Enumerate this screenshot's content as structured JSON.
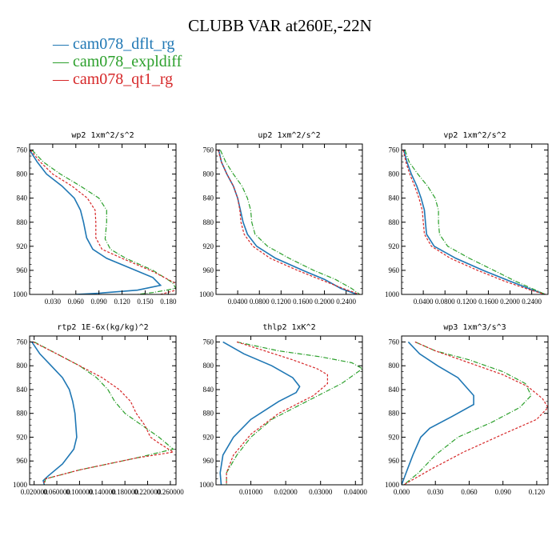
{
  "figure": {
    "title": "CLUBB VAR at260E,-22N",
    "legend": [
      {
        "label": "cam078_dflt_rg",
        "color": "#1f77b4"
      },
      {
        "label": "cam078_expldiff",
        "color": "#2ca02c"
      },
      {
        "label": "cam078_qt1_rg",
        "color": "#d62728"
      }
    ]
  },
  "chart_data": [
    {
      "type": "line",
      "title": "wp2   1xm^2/s^2",
      "xlim": [
        0.0,
        0.19
      ],
      "ylim": [
        1000,
        750
      ],
      "xticks": [
        "0.030",
        "0.060",
        "0.090",
        "0.120",
        "0.150",
        "0.180"
      ],
      "xtick_values": [
        0.03,
        0.06,
        0.09,
        0.12,
        0.15,
        0.18
      ],
      "yticks": [
        "760",
        "800",
        "840",
        "880",
        "920",
        "960",
        "1000"
      ],
      "ytick_values": [
        760,
        800,
        840,
        880,
        920,
        960,
        1000
      ],
      "series": [
        {
          "name": "cam078_dflt_rg",
          "x": [
            0.0,
            0.01,
            0.022,
            0.042,
            0.058,
            0.066,
            0.07,
            0.074,
            0.082,
            0.1,
            0.13,
            0.16,
            0.17,
            0.14,
            0.09,
            0.06
          ],
          "y": [
            760,
            780,
            800,
            820,
            840,
            860,
            880,
            906,
            925,
            940,
            956,
            972,
            985,
            993,
            998,
            1000
          ]
        },
        {
          "name": "cam078_expldiff",
          "x": [
            0.003,
            0.018,
            0.04,
            0.066,
            0.09,
            0.1,
            0.1,
            0.098,
            0.105,
            0.125,
            0.16,
            0.185,
            0.19,
            0.16,
            0.14
          ],
          "y": [
            760,
            780,
            800,
            820,
            840,
            860,
            880,
            908,
            925,
            940,
            960,
            980,
            990,
            997,
            1000
          ]
        },
        {
          "name": "cam078_qt1_rg",
          "x": [
            0.001,
            0.014,
            0.03,
            0.055,
            0.075,
            0.085,
            0.086,
            0.086,
            0.094,
            0.12,
            0.16,
            0.19,
            0.19,
            0.17
          ],
          "y": [
            760,
            780,
            800,
            820,
            840,
            860,
            880,
            906,
            925,
            940,
            962,
            982,
            993,
            1000
          ]
        }
      ]
    },
    {
      "type": "line",
      "title": "up2   1xm^2/s^2",
      "xlim": [
        0.0,
        0.27
      ],
      "ylim": [
        1000,
        750
      ],
      "xticks": [
        "0.0400",
        "0.0800",
        "0.1200",
        "0.1600",
        "0.2000",
        "0.2400"
      ],
      "xtick_values": [
        0.04,
        0.08,
        0.12,
        0.16,
        0.2,
        0.24
      ],
      "yticks": [
        "760",
        "800",
        "840",
        "880",
        "920",
        "960",
        "1000"
      ],
      "ytick_values": [
        760,
        800,
        840,
        880,
        920,
        960,
        1000
      ],
      "series": [
        {
          "name": "cam078_dflt_rg",
          "x": [
            0.005,
            0.01,
            0.02,
            0.032,
            0.04,
            0.045,
            0.05,
            0.058,
            0.075,
            0.11,
            0.16,
            0.2,
            0.23,
            0.26
          ],
          "y": [
            760,
            780,
            800,
            820,
            840,
            860,
            880,
            900,
            920,
            940,
            960,
            975,
            990,
            1000
          ]
        },
        {
          "name": "cam078_expldiff",
          "x": [
            0.008,
            0.018,
            0.032,
            0.048,
            0.058,
            0.064,
            0.066,
            0.072,
            0.095,
            0.135,
            0.18,
            0.22,
            0.25,
            0.265
          ],
          "y": [
            760,
            780,
            800,
            820,
            840,
            860,
            880,
            900,
            920,
            940,
            960,
            975,
            990,
            1000
          ]
        },
        {
          "name": "cam078_qt1_rg",
          "x": [
            0.004,
            0.01,
            0.02,
            0.032,
            0.04,
            0.044,
            0.046,
            0.052,
            0.068,
            0.1,
            0.15,
            0.2,
            0.24,
            0.265
          ],
          "y": [
            760,
            780,
            800,
            820,
            840,
            860,
            880,
            900,
            920,
            940,
            960,
            978,
            992,
            1000
          ]
        }
      ]
    },
    {
      "type": "line",
      "title": "vp2   1xm^2/s^2",
      "xlim": [
        0.0,
        0.27
      ],
      "ylim": [
        1000,
        750
      ],
      "xticks": [
        "0.0400",
        "0.0800",
        "0.1200",
        "0.1600",
        "0.2000",
        "0.2400"
      ],
      "xtick_values": [
        0.04,
        0.08,
        0.12,
        0.16,
        0.2,
        0.24
      ],
      "yticks": [
        "760",
        "800",
        "840",
        "880",
        "920",
        "960",
        "1000"
      ],
      "ytick_values": [
        760,
        800,
        840,
        880,
        920,
        960,
        1000
      ],
      "series": [
        {
          "name": "cam078_dflt_rg",
          "x": [
            0.004,
            0.01,
            0.018,
            0.028,
            0.036,
            0.042,
            0.044,
            0.046,
            0.06,
            0.1,
            0.15,
            0.2,
            0.24,
            0.265
          ],
          "y": [
            760,
            780,
            800,
            820,
            840,
            860,
            880,
            900,
            920,
            940,
            960,
            978,
            992,
            1000
          ]
        },
        {
          "name": "cam078_expldiff",
          "x": [
            0.006,
            0.014,
            0.03,
            0.048,
            0.062,
            0.068,
            0.068,
            0.07,
            0.085,
            0.125,
            0.17,
            0.21,
            0.245,
            0.265
          ],
          "y": [
            760,
            780,
            800,
            820,
            840,
            860,
            880,
            900,
            920,
            940,
            960,
            978,
            992,
            1000
          ]
        },
        {
          "name": "cam078_qt1_rg",
          "x": [
            0.003,
            0.008,
            0.015,
            0.024,
            0.032,
            0.038,
            0.04,
            0.042,
            0.055,
            0.09,
            0.14,
            0.19,
            0.235,
            0.265
          ],
          "y": [
            760,
            780,
            800,
            820,
            840,
            860,
            880,
            900,
            920,
            940,
            960,
            978,
            992,
            1000
          ]
        }
      ]
    },
    {
      "type": "line",
      "title": "rtp2   1E-6x(kg/kg)^2",
      "xlim": [
        0.012,
        0.27
      ],
      "ylim": [
        1000,
        750
      ],
      "xticks": [
        "0.020000",
        "0.060000",
        "0.100000",
        "0.140000",
        "0.180000",
        "0.220000",
        "0.260000"
      ],
      "xtick_values": [
        0.02,
        0.06,
        0.1,
        0.14,
        0.18,
        0.22,
        0.26
      ],
      "yticks": [
        "760",
        "800",
        "840",
        "880",
        "920",
        "960",
        "1000"
      ],
      "ytick_values": [
        760,
        800,
        840,
        880,
        920,
        960,
        1000
      ],
      "series": [
        {
          "name": "cam078_dflt_rg",
          "x": [
            0.016,
            0.03,
            0.05,
            0.07,
            0.082,
            0.088,
            0.092,
            0.095,
            0.09,
            0.07,
            0.045,
            0.036,
            0.038
          ],
          "y": [
            760,
            780,
            800,
            820,
            840,
            860,
            880,
            920,
            940,
            965,
            985,
            993,
            1000
          ]
        },
        {
          "name": "cam078_expldiff",
          "x": [
            0.02,
            0.06,
            0.1,
            0.13,
            0.15,
            0.162,
            0.18,
            0.21,
            0.24,
            0.265,
            0.2,
            0.1,
            0.04,
            0.038
          ],
          "y": [
            760,
            780,
            800,
            820,
            840,
            860,
            880,
            900,
            920,
            940,
            955,
            975,
            990,
            1000
          ]
        },
        {
          "name": "cam078_qt1_rg",
          "x": [
            0.018,
            0.06,
            0.1,
            0.14,
            0.17,
            0.19,
            0.2,
            0.215,
            0.225,
            0.24,
            0.265,
            0.2,
            0.1,
            0.04,
            0.036
          ],
          "y": [
            760,
            780,
            800,
            820,
            840,
            860,
            880,
            900,
            920,
            930,
            945,
            955,
            975,
            990,
            1000
          ]
        }
      ]
    },
    {
      "type": "line",
      "title": "thlp2   1xK^2",
      "xlim": [
        0.0,
        0.042
      ],
      "ylim": [
        1000,
        750
      ],
      "xticks": [
        "0.01000",
        "0.02000",
        "0.03000",
        "0.04000"
      ],
      "xtick_values": [
        0.01,
        0.02,
        0.03,
        0.04
      ],
      "yticks": [
        "760",
        "800",
        "840",
        "880",
        "920",
        "960",
        "1000"
      ],
      "ytick_values": [
        760,
        800,
        840,
        880,
        920,
        960,
        1000
      ],
      "series": [
        {
          "name": "cam078_dflt_rg",
          "x": [
            0.002,
            0.008,
            0.016,
            0.022,
            0.024,
            0.023,
            0.018,
            0.01,
            0.005,
            0.002,
            0.0012,
            0.0015
          ],
          "y": [
            760,
            780,
            800,
            820,
            835,
            845,
            860,
            890,
            920,
            950,
            980,
            1000
          ]
        },
        {
          "name": "cam078_expldiff",
          "x": [
            0.006,
            0.018,
            0.03,
            0.039,
            0.042,
            0.036,
            0.026,
            0.016,
            0.01,
            0.006,
            0.003,
            0.003
          ],
          "y": [
            760,
            775,
            785,
            795,
            805,
            830,
            860,
            890,
            920,
            950,
            980,
            1000
          ]
        },
        {
          "name": "cam078_qt1_rg",
          "x": [
            0.006,
            0.014,
            0.022,
            0.029,
            0.032,
            0.032,
            0.028,
            0.018,
            0.01,
            0.005,
            0.003,
            0.003
          ],
          "y": [
            760,
            775,
            790,
            805,
            815,
            830,
            850,
            880,
            915,
            950,
            980,
            1000
          ]
        }
      ]
    },
    {
      "type": "line",
      "title": "wp3   1xm^3/s^3",
      "xlim": [
        0.0,
        0.13
      ],
      "ylim": [
        1000,
        750
      ],
      "xticks": [
        "0.000",
        "0.030",
        "0.060",
        "0.090",
        "0.120"
      ],
      "xtick_values": [
        0.0,
        0.03,
        0.06,
        0.09,
        0.12
      ],
      "yticks": [
        "760",
        "800",
        "840",
        "880",
        "920",
        "960",
        "1000"
      ],
      "ytick_values": [
        760,
        800,
        840,
        880,
        920,
        960,
        1000
      ],
      "series": [
        {
          "name": "cam078_dflt_rg",
          "x": [
            0.006,
            0.016,
            0.032,
            0.05,
            0.064,
            0.064,
            0.045,
            0.025,
            0.017,
            0.01,
            0.004,
            0.0
          ],
          "y": [
            760,
            780,
            800,
            820,
            850,
            865,
            885,
            905,
            920,
            950,
            980,
            1000
          ]
        },
        {
          "name": "cam078_expldiff",
          "x": [
            0.012,
            0.03,
            0.06,
            0.09,
            0.11,
            0.115,
            0.105,
            0.08,
            0.05,
            0.03,
            0.015,
            0.002
          ],
          "y": [
            760,
            775,
            790,
            810,
            830,
            850,
            870,
            895,
            920,
            950,
            980,
            1000
          ]
        },
        {
          "name": "cam078_qt1_rg",
          "x": [
            0.012,
            0.03,
            0.06,
            0.09,
            0.112,
            0.125,
            0.13,
            0.12,
            0.09,
            0.055,
            0.025,
            0.002
          ],
          "y": [
            760,
            775,
            795,
            815,
            835,
            855,
            870,
            890,
            915,
            945,
            975,
            1000
          ]
        }
      ]
    }
  ]
}
